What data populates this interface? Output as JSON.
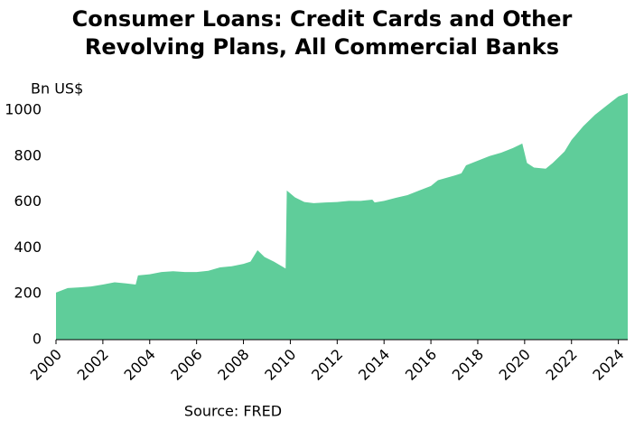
{
  "chart_data": {
    "type": "area",
    "title": "Consumer Loans: Credit Cards and Other Revolving Plans, All Commercial Banks",
    "y_label": "Bn US$",
    "source": "Source: FRED",
    "x": [
      2000.0,
      2000.5,
      2001.0,
      2001.5,
      2002.0,
      2002.5,
      2003.0,
      2003.4,
      2003.5,
      2004.0,
      2004.5,
      2005.0,
      2005.5,
      2006.0,
      2006.5,
      2007.0,
      2007.5,
      2008.0,
      2008.3,
      2008.6,
      2008.9,
      2009.3,
      2009.8,
      2009.85,
      2010.2,
      2010.6,
      2011.0,
      2011.5,
      2012.0,
      2012.5,
      2013.0,
      2013.5,
      2013.6,
      2014.0,
      2014.5,
      2015.0,
      2015.5,
      2016.0,
      2016.3,
      2017.0,
      2017.3,
      2017.5,
      2018.0,
      2018.5,
      2019.0,
      2019.5,
      2019.9,
      2020.1,
      2020.4,
      2020.9,
      2021.2,
      2021.7,
      2022.0,
      2022.5,
      2023.0,
      2023.5,
      2024.0,
      2024.4
    ],
    "series": [
      {
        "color": "#5fcd9a",
        "values": [
          205,
          225,
          228,
          232,
          240,
          250,
          245,
          240,
          280,
          285,
          295,
          298,
          295,
          295,
          300,
          315,
          320,
          330,
          340,
          390,
          360,
          340,
          310,
          650,
          620,
          600,
          595,
          598,
          600,
          605,
          605,
          610,
          598,
          605,
          618,
          630,
          650,
          670,
          695,
          715,
          725,
          760,
          780,
          800,
          815,
          835,
          855,
          770,
          750,
          745,
          770,
          820,
          870,
          930,
          980,
          1020,
          1060,
          1075
        ]
      }
    ],
    "xlim": [
      2000,
      2024.4
    ],
    "xticks": [
      2000,
      2002,
      2004,
      2006,
      2008,
      2010,
      2012,
      2014,
      2016,
      2018,
      2020,
      2022,
      2024
    ],
    "ylim": [
      0,
      1100
    ],
    "yticks": [
      0,
      200,
      400,
      600,
      800,
      1000
    ]
  }
}
